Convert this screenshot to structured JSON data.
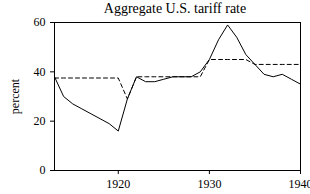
{
  "chart_data": {
    "type": "line",
    "title": "Aggregate U.S. tariff rate",
    "y_label": "percent",
    "x": [
      1913,
      1914,
      1915,
      1916,
      1917,
      1918,
      1919,
      1920,
      1921,
      1922,
      1923,
      1924,
      1925,
      1926,
      1927,
      1928,
      1929,
      1930,
      1931,
      1932,
      1933,
      1934,
      1935,
      1936,
      1937,
      1938,
      1939,
      1940
    ],
    "series": [
      {
        "color": "#000000",
        "line_style": "solid",
        "values": [
          38,
          30,
          27,
          25,
          23,
          21,
          19,
          16,
          29,
          38,
          36,
          36,
          37,
          38,
          38,
          38,
          40,
          45,
          53,
          59,
          54,
          47,
          43,
          39,
          38,
          39,
          37,
          35
        ]
      },
      {
        "color": "#000000",
        "line_style": "dashed",
        "values": [
          37.5,
          37.5,
          37.5,
          37.5,
          37.5,
          37.5,
          37.5,
          37.5,
          29,
          38,
          38,
          38,
          38,
          38,
          38,
          38,
          38,
          45,
          45,
          45,
          45,
          45,
          43,
          43,
          43,
          43,
          43,
          43
        ]
      }
    ],
    "xlim": [
      1913,
      1940
    ],
    "xticks": [
      1920,
      1930,
      1940
    ],
    "ylim": [
      0,
      60
    ],
    "yticks": [
      0,
      20,
      40,
      60
    ],
    "grid": false
  }
}
